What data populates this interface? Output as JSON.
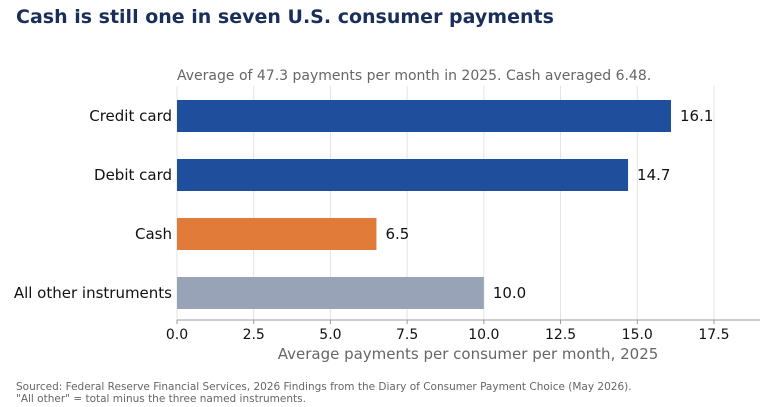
{
  "chart_data": {
    "type": "bar",
    "orientation": "horizontal",
    "title": "Cash is still one in seven U.S. consumer payments",
    "subtitle": "Average of 47.3 payments per month in 2025. Cash averaged 6.48.",
    "xlabel": "Average payments per consumer per month, 2025",
    "ylabel": "",
    "categories": [
      "Credit card",
      "Debit card",
      "Cash",
      "All other instruments"
    ],
    "values": [
      16.1,
      14.7,
      6.5,
      10.0
    ],
    "value_labels": [
      "16.1",
      "14.7",
      "6.5",
      "10.0"
    ],
    "bar_colors": [
      "#1f4e9c",
      "#1f4e9c",
      "#e07b39",
      "#98a3b8"
    ],
    "xlim": [
      0,
      19
    ],
    "xticks": [
      0,
      2.5,
      5,
      7.5,
      10,
      12.5,
      15,
      17.5
    ],
    "xtick_labels": [
      "0.0",
      "2.5",
      "5.0",
      "7.5",
      "10.0",
      "12.5",
      "15.0",
      "17.5"
    ],
    "grid": "vertical",
    "legend": "none"
  },
  "source": {
    "line1": "Sourced: Federal Reserve Financial Services, 2026 Findings from the Diary of Consumer Payment Choice (May 2026).",
    "line2": "\"All other\" = total minus the three named instruments."
  }
}
